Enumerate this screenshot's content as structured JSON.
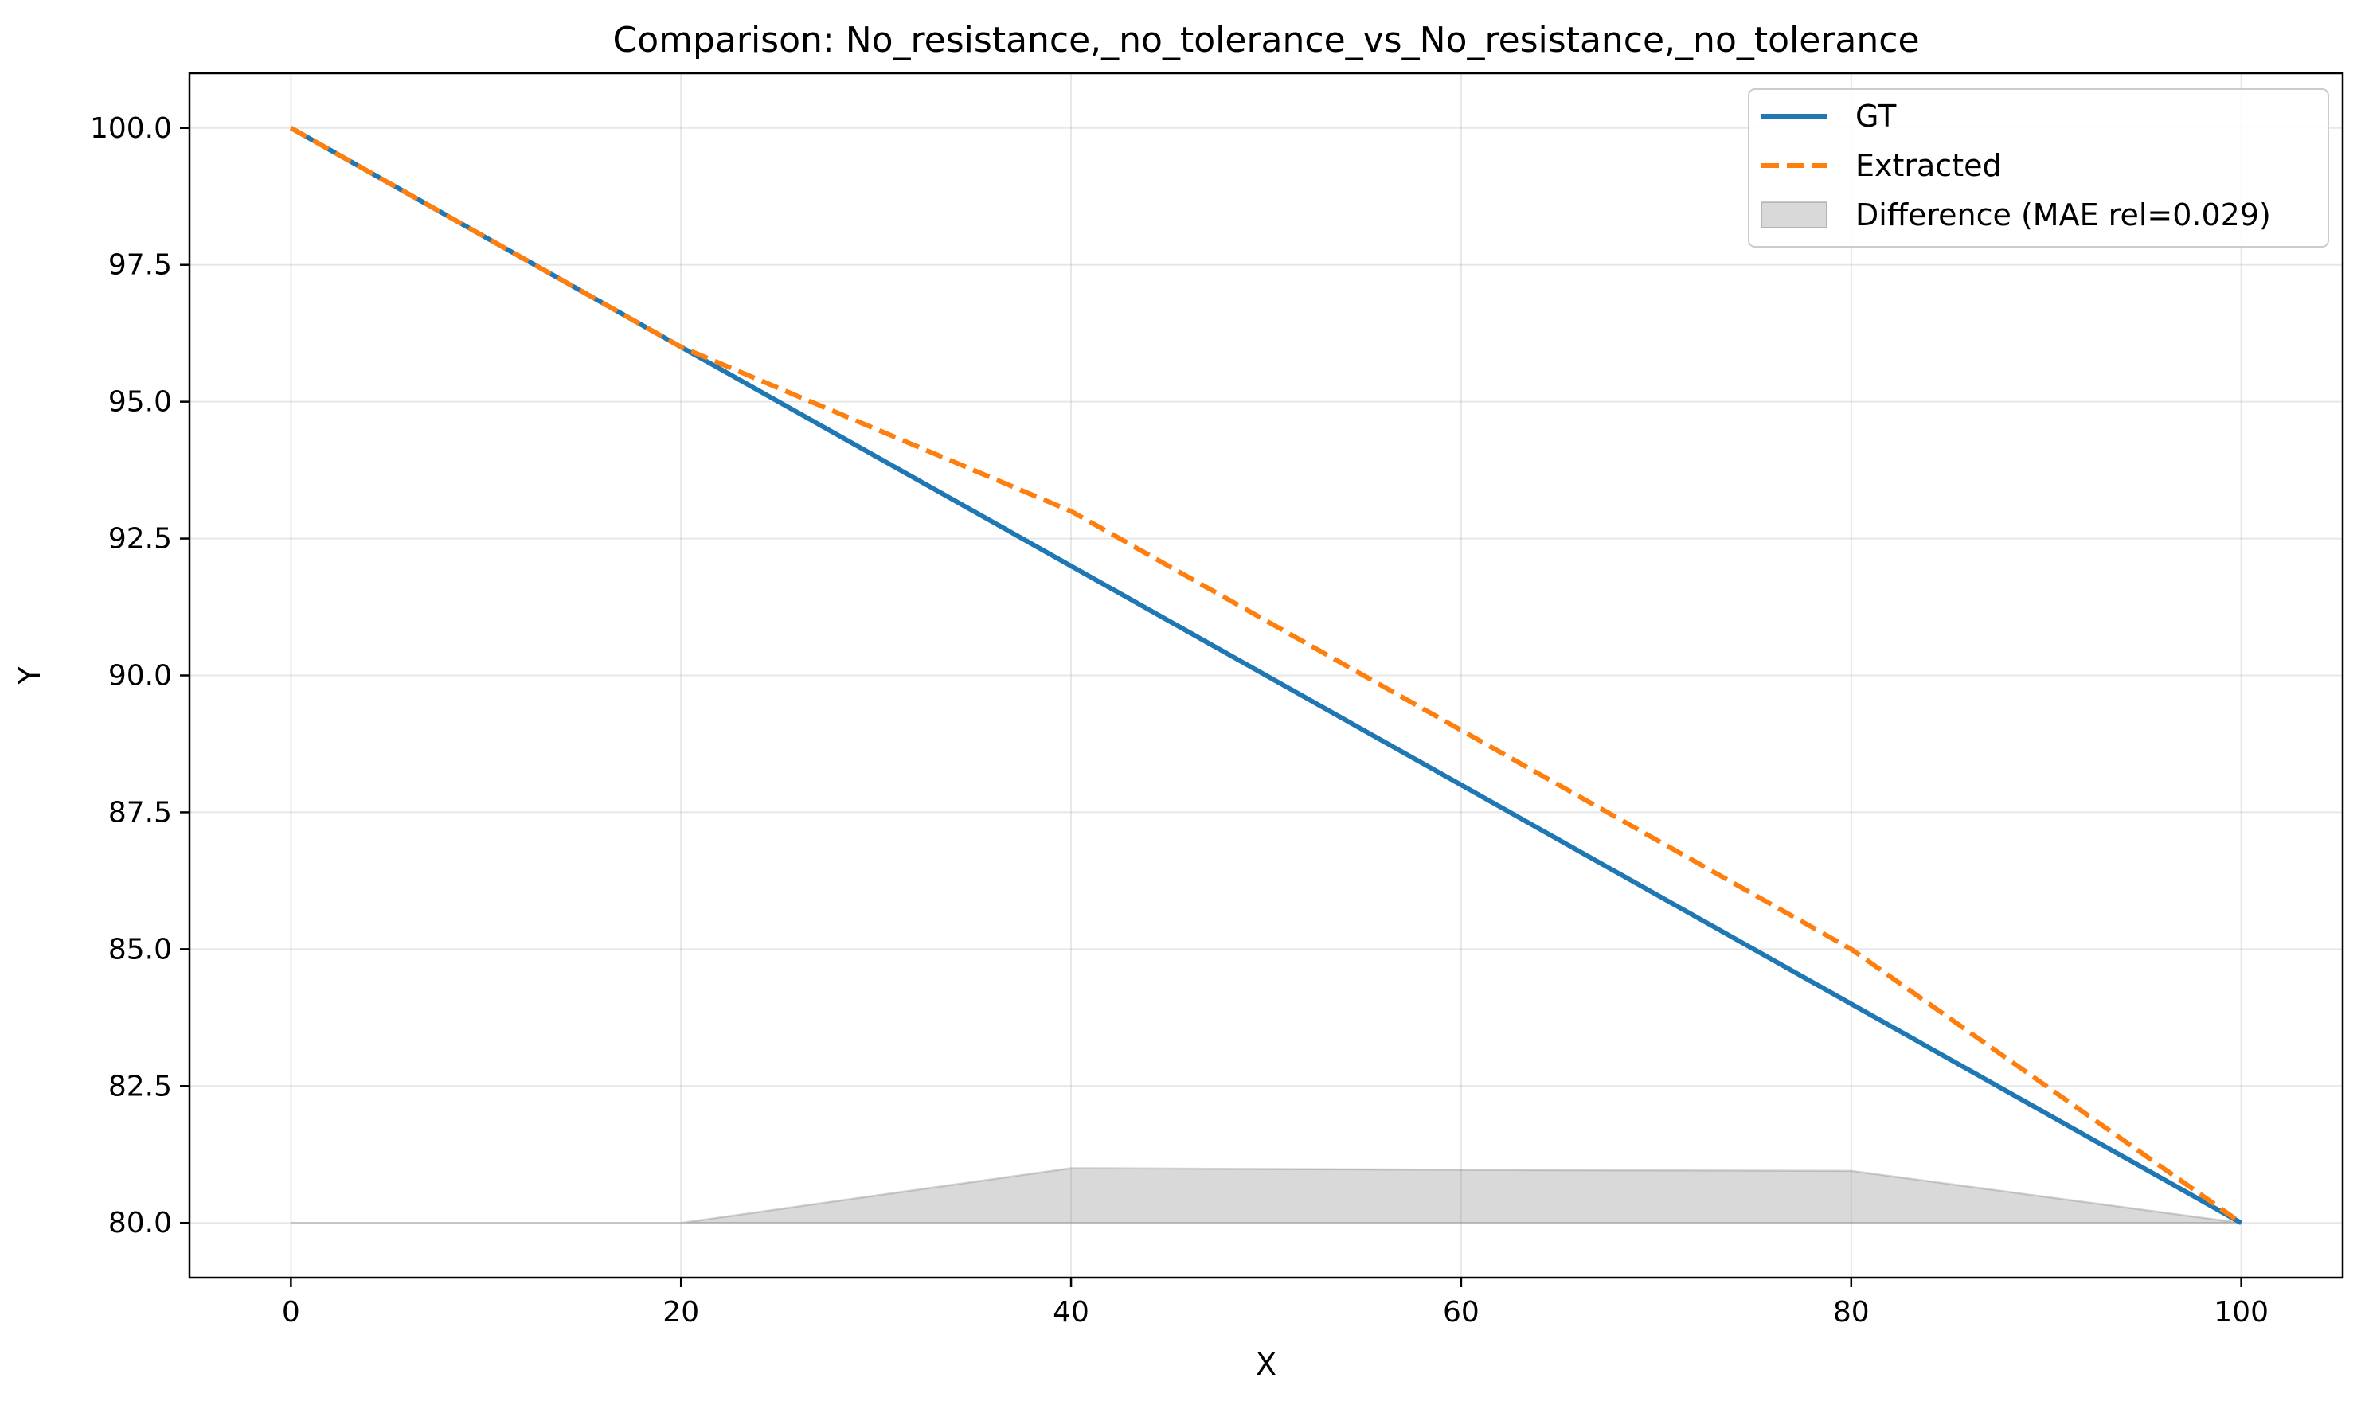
{
  "chart_data": {
    "type": "line",
    "title": "Comparison: No_resistance,_no_tolerance_vs_No_resistance,_no_tolerance",
    "xlabel": "X",
    "ylabel": "Y",
    "xlim": [
      -5.2,
      105.2
    ],
    "ylim": [
      79.0,
      101.0
    ],
    "xticks": [
      0,
      20,
      40,
      60,
      80,
      100
    ],
    "xtick_labels": [
      "0",
      "20",
      "40",
      "60",
      "80",
      "100"
    ],
    "yticks": [
      80.0,
      82.5,
      85.0,
      87.5,
      90.0,
      92.5,
      95.0,
      97.5,
      100.0
    ],
    "ytick_labels": [
      "80.0",
      "82.5",
      "85.0",
      "87.5",
      "90.0",
      "92.5",
      "95.0",
      "97.5",
      "100.0"
    ],
    "grid": true,
    "legend_position": "top-right",
    "series": [
      {
        "name": "GT",
        "style": "solid",
        "color": "#1f77b4",
        "x": [
          0,
          20,
          40,
          60,
          80,
          100
        ],
        "y": [
          100.0,
          96.0,
          92.0,
          88.0,
          84.0,
          80.0
        ]
      },
      {
        "name": "Extracted",
        "style": "dashed",
        "color": "#ff7f0e",
        "x": [
          0,
          20,
          40,
          60,
          80,
          100
        ],
        "y": [
          100.0,
          96.0,
          93.0,
          89.0,
          85.0,
          80.0
        ]
      }
    ],
    "difference": {
      "name": "Difference (MAE rel=0.029)",
      "color": "#808080",
      "x": [
        0,
        20,
        40,
        60,
        80,
        100
      ],
      "y": [
        80.0,
        80.0,
        81.0,
        80.97,
        80.95,
        80.0
      ],
      "baseline": 80.0
    }
  }
}
